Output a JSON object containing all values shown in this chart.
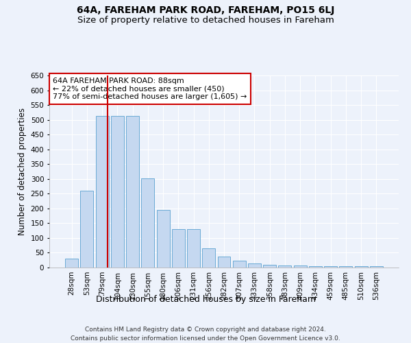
{
  "title": "64A, FAREHAM PARK ROAD, FAREHAM, PO15 6LJ",
  "subtitle": "Size of property relative to detached houses in Fareham",
  "xlabel": "Distribution of detached houses by size in Fareham",
  "ylabel": "Number of detached properties",
  "categories": [
    "28sqm",
    "53sqm",
    "79sqm",
    "104sqm",
    "130sqm",
    "155sqm",
    "180sqm",
    "206sqm",
    "231sqm",
    "256sqm",
    "282sqm",
    "307sqm",
    "333sqm",
    "358sqm",
    "383sqm",
    "409sqm",
    "434sqm",
    "459sqm",
    "485sqm",
    "510sqm",
    "536sqm"
  ],
  "values": [
    30,
    260,
    512,
    512,
    512,
    302,
    196,
    130,
    130,
    64,
    37,
    23,
    15,
    10,
    8,
    6,
    5,
    5,
    5,
    5,
    5
  ],
  "bar_color": "#c5d8f0",
  "bar_edge_color": "#6aaad4",
  "background_color": "#edf2fb",
  "grid_color": "#ffffff",
  "vline_color": "#cc0000",
  "vline_x_index": 2.36,
  "annotation_text": "64A FAREHAM PARK ROAD: 88sqm\n← 22% of detached houses are smaller (450)\n77% of semi-detached houses are larger (1,605) →",
  "annotation_box_color": "#cc0000",
  "ylim": [
    0,
    650
  ],
  "yticks": [
    0,
    50,
    100,
    150,
    200,
    250,
    300,
    350,
    400,
    450,
    500,
    550,
    600,
    650
  ],
  "footer_line1": "Contains HM Land Registry data © Crown copyright and database right 2024.",
  "footer_line2": "Contains public sector information licensed under the Open Government Licence v3.0.",
  "title_fontsize": 10,
  "subtitle_fontsize": 9.5,
  "xlabel_fontsize": 9,
  "ylabel_fontsize": 8.5,
  "tick_fontsize": 7.5,
  "annotation_fontsize": 8,
  "footer_fontsize": 6.5
}
